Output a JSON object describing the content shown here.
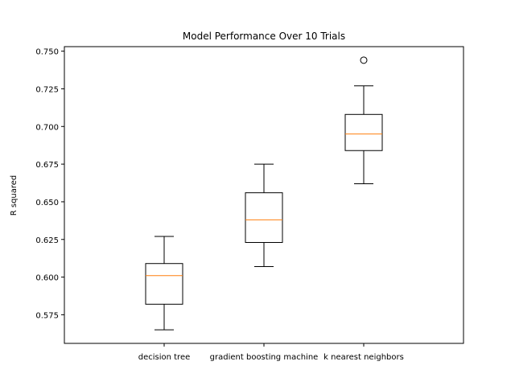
{
  "chart_data": {
    "type": "box",
    "title": "Model Performance Over 10 Trials",
    "xlabel": "",
    "ylabel": "R squared",
    "ylim": [
      0.556,
      0.753
    ],
    "yticks": [
      0.575,
      0.6,
      0.625,
      0.65,
      0.675,
      0.7,
      0.725,
      0.75
    ],
    "ytick_labels": [
      "0.575",
      "0.600",
      "0.625",
      "0.650",
      "0.675",
      "0.700",
      "0.725",
      "0.750"
    ],
    "categories": [
      "decision tree",
      "gradient boosting machine",
      "k nearest neighbors"
    ],
    "boxes": [
      {
        "category": "decision tree",
        "whisker_low": 0.565,
        "q1": 0.582,
        "median": 0.601,
        "q3": 0.609,
        "whisker_high": 0.627,
        "outliers": []
      },
      {
        "category": "gradient boosting machine",
        "whisker_low": 0.607,
        "q1": 0.623,
        "median": 0.638,
        "q3": 0.656,
        "whisker_high": 0.675,
        "outliers": []
      },
      {
        "category": "k nearest neighbors",
        "whisker_low": 0.662,
        "q1": 0.684,
        "median": 0.695,
        "q3": 0.708,
        "whisker_high": 0.727,
        "outliers": [
          0.744
        ]
      }
    ],
    "colors": {
      "box": "#000000",
      "median": "#ff7f0e",
      "background": "#ffffff"
    },
    "grid": false,
    "legend": "none"
  }
}
